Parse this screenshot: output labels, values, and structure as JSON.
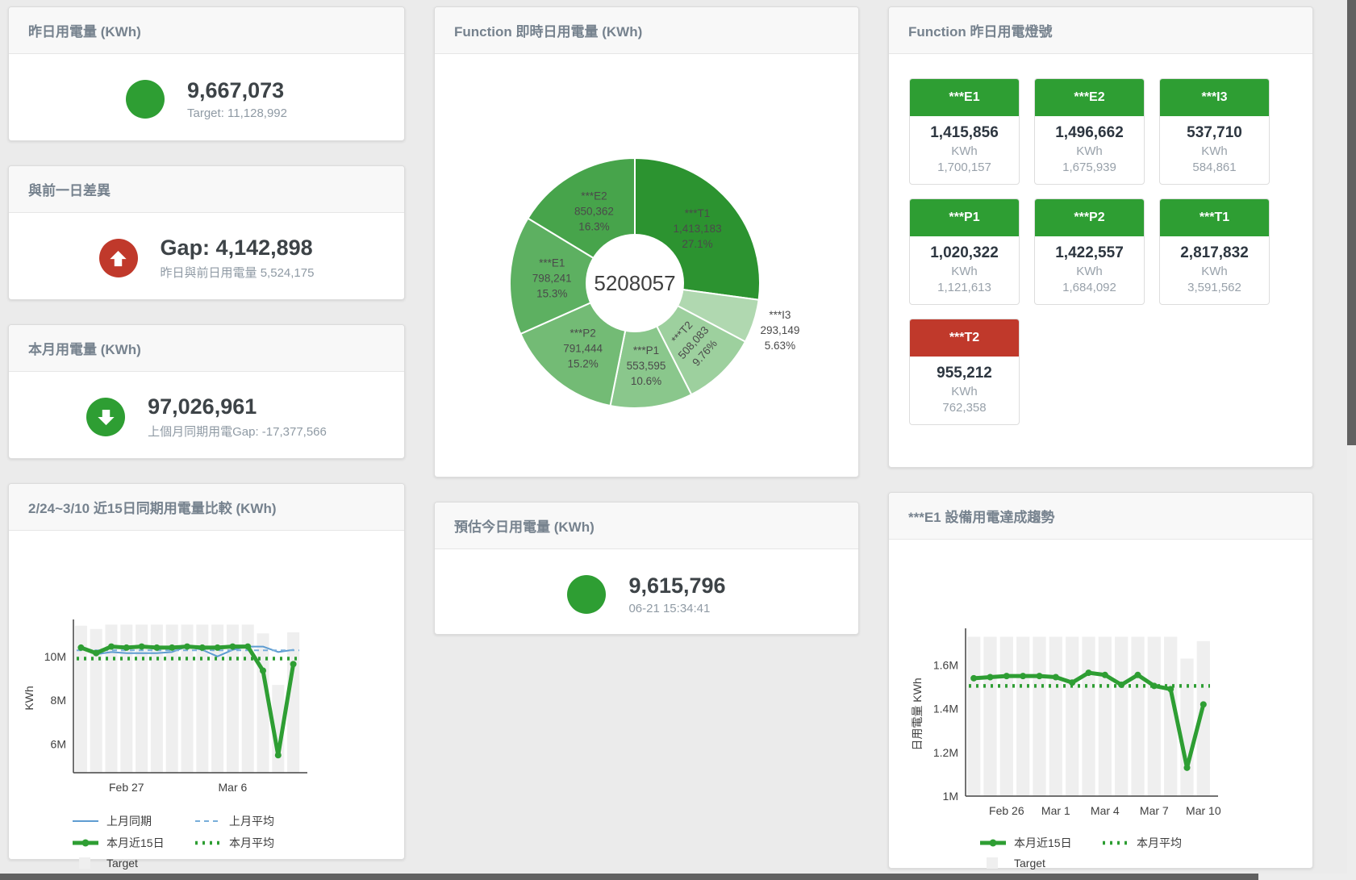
{
  "colors": {
    "green": "#2e9e33",
    "red": "#c0392b",
    "blue": "#5e9cd1",
    "blue_dash": "#78aeda",
    "bar_gray": "#efefef",
    "title_gray": "#76828e"
  },
  "cards": {
    "yesterday": {
      "title": "昨日用電量 (KWh)",
      "value": "9,667,073",
      "subtext": "Target: 11,128,992",
      "status": {
        "color": "green",
        "arrow": null
      }
    },
    "diff": {
      "title": "與前一日差異",
      "value": "Gap: 4,142,898",
      "subtext": "昨日與前日用電量 5,524,175",
      "status": {
        "color": "red",
        "arrow": "up"
      }
    },
    "month": {
      "title": "本月用電量 (KWh)",
      "value": "97,026,961",
      "subtext": "上個月同期用電Gap: -17,377,566",
      "status": {
        "color": "green",
        "arrow": "down"
      }
    },
    "estimate": {
      "title": "預估今日用電量 (KWh)",
      "value": "9,615,796",
      "subtext": "06-21 15:34:41",
      "status": {
        "color": "green",
        "arrow": null
      }
    },
    "realtime_donut": {
      "title": "Function 即時日用電量 (KWh)"
    },
    "compare15": {
      "title": "2/24~3/10 近15日同期用電量比較 (KWh)"
    },
    "e1_trend": {
      "title": "***E1 設備用電達成趨勢"
    },
    "lights": {
      "title": "Function 昨日用電燈號",
      "tiles": [
        {
          "label": "***E1",
          "value": "1,415,856",
          "unit": "KWh",
          "target": "1,700,157",
          "status": "green"
        },
        {
          "label": "***E2",
          "value": "1,496,662",
          "unit": "KWh",
          "target": "1,675,939",
          "status": "green"
        },
        {
          "label": "***I3",
          "value": "537,710",
          "unit": "KWh",
          "target": "584,861",
          "status": "green"
        },
        {
          "label": "***P1",
          "value": "1,020,322",
          "unit": "KWh",
          "target": "1,121,613",
          "status": "green"
        },
        {
          "label": "***P2",
          "value": "1,422,557",
          "unit": "KWh",
          "target": "1,684,092",
          "status": "green"
        },
        {
          "label": "***T1",
          "value": "2,817,832",
          "unit": "KWh",
          "target": "3,591,562",
          "status": "green"
        },
        {
          "label": "***T2",
          "value": "955,212",
          "unit": "KWh",
          "target": "762,358",
          "status": "red"
        }
      ]
    }
  },
  "chart_data": [
    {
      "type": "pie",
      "title": "Function 即時日用電量 (KWh)",
      "center_total": "5208057",
      "slices": [
        {
          "name": "***T1",
          "value": 1413183,
          "value_label": "1,413,183",
          "pct_label": "27.1%",
          "color": "#2c9330",
          "label_pos": "inside"
        },
        {
          "name": "***I3",
          "value": 293149,
          "value_label": "293,149",
          "pct_label": "5.63%",
          "color": "#b0d8b0",
          "label_pos": "outside"
        },
        {
          "name": "***T2",
          "value": 508083,
          "value_label": "508,083",
          "pct_label": "9.76%",
          "color": "#9dd09e",
          "label_pos": "inside",
          "label_rotate": -48
        },
        {
          "name": "***P1",
          "value": 553595,
          "value_label": "553,595",
          "pct_label": "10.6%",
          "color": "#8ac78c",
          "label_pos": "inside"
        },
        {
          "name": "***P2",
          "value": 791444,
          "value_label": "791,444",
          "pct_label": "15.2%",
          "color": "#73bb75",
          "label_pos": "inside"
        },
        {
          "name": "***E1",
          "value": 798241,
          "value_label": "798,241",
          "pct_label": "15.3%",
          "color": "#5db061",
          "label_pos": "inside"
        },
        {
          "name": "***E2",
          "value": 850362,
          "value_label": "850,362",
          "pct_label": "16.3%",
          "color": "#47a44b",
          "label_pos": "inside"
        }
      ]
    },
    {
      "type": "line",
      "title": "2/24~3/10 近15日同期用電量比較 (KWh)",
      "ylabel": "KWh",
      "n": 15,
      "ylim_m": [
        4.7,
        11.5
      ],
      "yticks": [
        {
          "v": 6,
          "label": "6M"
        },
        {
          "v": 8,
          "label": "8M"
        },
        {
          "v": 10,
          "label": "10M"
        }
      ],
      "xticks": [
        {
          "i": 3,
          "label": "Feb 27"
        },
        {
          "i": 10,
          "label": "Mar 6"
        }
      ],
      "series": [
        {
          "name": "Target",
          "type": "bar",
          "color": "#efefef",
          "values_m": [
            11.4,
            11.25,
            11.45,
            11.45,
            11.45,
            11.45,
            11.45,
            11.45,
            11.45,
            11.45,
            11.45,
            11.45,
            11.05,
            8.7,
            11.1
          ]
        },
        {
          "name": "上月同期",
          "type": "line",
          "color": "#5e9cd1",
          "width": 2,
          "values_m": [
            10.45,
            10.1,
            10.2,
            10.15,
            10.15,
            10.15,
            10.2,
            10.45,
            10.3,
            10.0,
            10.3,
            10.45,
            10.45,
            10.2,
            10.3
          ]
        },
        {
          "name": "上月平均",
          "type": "hline",
          "color": "#78aeda",
          "width": 2,
          "dash": "6 5",
          "value_m": 10.28
        },
        {
          "name": "本月近15日",
          "type": "line",
          "color": "#2e9e33",
          "width": 5,
          "markers": true,
          "values_m": [
            10.4,
            10.15,
            10.45,
            10.4,
            10.45,
            10.4,
            10.4,
            10.45,
            10.4,
            10.4,
            10.45,
            10.45,
            9.35,
            5.5,
            9.65
          ]
        },
        {
          "name": "本月平均",
          "type": "hline",
          "color": "#2e9e33",
          "width": 4.5,
          "dash": "3 6",
          "value_m": 9.9
        }
      ],
      "legend": [
        [
          "上月同期",
          "上月平均"
        ],
        [
          "本月近15日",
          "本月平均"
        ],
        [
          "Target"
        ]
      ]
    },
    {
      "type": "line",
      "title": "***E1 設備用電達成趨勢",
      "ylabel": "日用電量 KWh",
      "n": 15,
      "ylim_m": [
        1.0,
        1.75
      ],
      "yticks": [
        {
          "v": 1,
          "label": "1M"
        },
        {
          "v": 1.2,
          "label": "1.2M"
        },
        {
          "v": 1.4,
          "label": "1.4M"
        },
        {
          "v": 1.6,
          "label": "1.6M"
        }
      ],
      "xticks": [
        {
          "i": 2,
          "label": "Feb 26"
        },
        {
          "i": 5,
          "label": "Mar 1"
        },
        {
          "i": 8,
          "label": "Mar 4"
        },
        {
          "i": 11,
          "label": "Mar 7"
        },
        {
          "i": 14,
          "label": "Mar 10"
        }
      ],
      "series": [
        {
          "name": "Target",
          "type": "bar",
          "color": "#efefef",
          "values_m": [
            1.73,
            1.73,
            1.73,
            1.73,
            1.73,
            1.73,
            1.73,
            1.73,
            1.73,
            1.73,
            1.73,
            1.73,
            1.73,
            1.63,
            1.71
          ]
        },
        {
          "name": "本月近15日",
          "type": "line",
          "color": "#2e9e33",
          "width": 5,
          "markers": true,
          "values_m": [
            1.54,
            1.545,
            1.55,
            1.55,
            1.55,
            1.545,
            1.52,
            1.565,
            1.555,
            1.51,
            1.555,
            1.505,
            1.49,
            1.13,
            1.42
          ]
        },
        {
          "name": "本月平均",
          "type": "hline",
          "color": "#2e9e33",
          "width": 4.5,
          "dash": "3 6",
          "value_m": 1.505
        }
      ],
      "legend": [
        [
          "本月近15日",
          "本月平均"
        ],
        [
          "Target"
        ]
      ]
    }
  ]
}
